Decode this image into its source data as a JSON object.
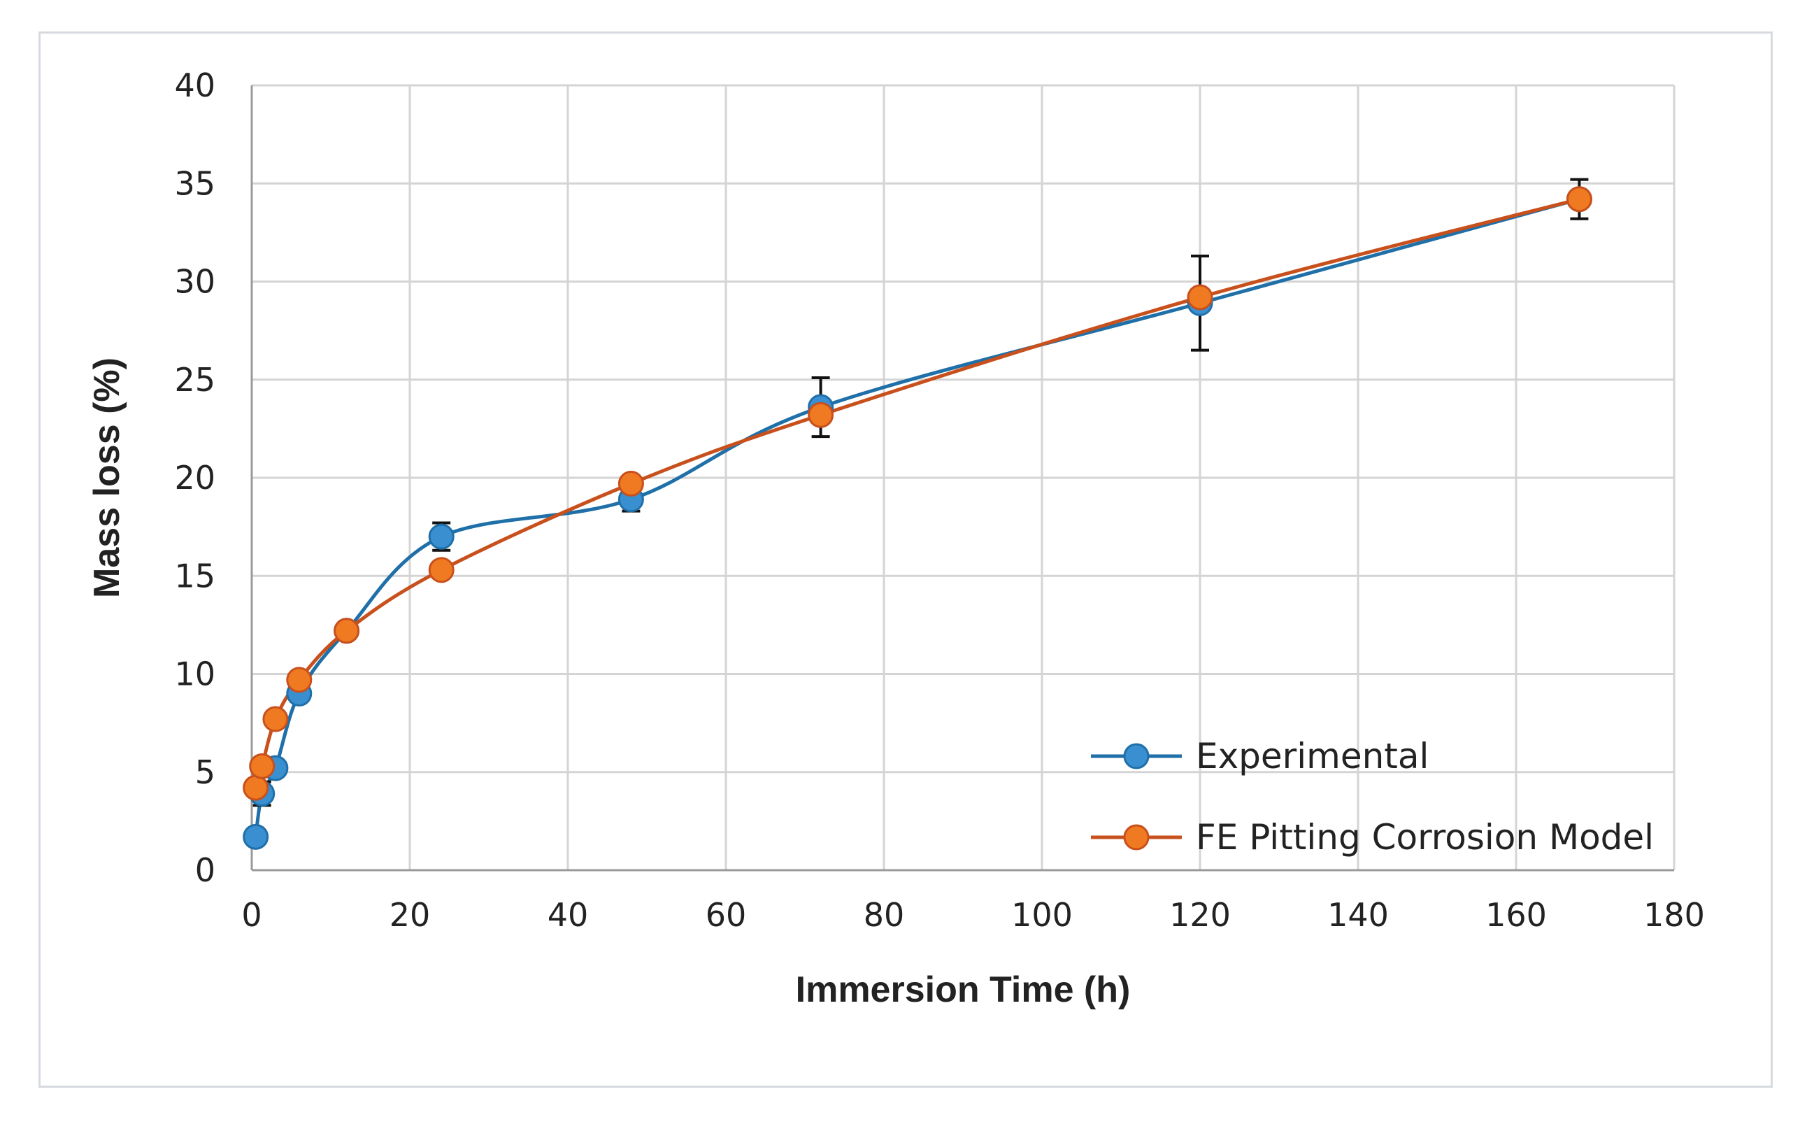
{
  "chart_data": {
    "type": "line",
    "xlabel": "Immersion Time (h)",
    "ylabel": "Mass loss (%)",
    "xlim": [
      0,
      180
    ],
    "ylim": [
      0,
      40
    ],
    "xticks": [
      0,
      20,
      40,
      60,
      80,
      100,
      120,
      140,
      160,
      180
    ],
    "yticks": [
      0,
      5,
      10,
      15,
      20,
      25,
      30,
      35,
      40
    ],
    "grid": true,
    "legend_position": "bottom-right",
    "smooth_lines": true,
    "series": [
      {
        "name": "Experimental",
        "color": "#1f6fa8",
        "marker_color": "#3a8fd0",
        "points": [
          {
            "x": 0.5,
            "y": 1.7
          },
          {
            "x": 1.3,
            "y": 3.9,
            "err": 0.6
          },
          {
            "x": 3,
            "y": 5.2,
            "err": 0.4
          },
          {
            "x": 6,
            "y": 9.0,
            "err": 0.4
          },
          {
            "x": 12,
            "y": 12.2,
            "err": 0.4
          },
          {
            "x": 24,
            "y": 17.0,
            "err": 0.7
          },
          {
            "x": 48,
            "y": 18.9,
            "err": 0.6
          },
          {
            "x": 72,
            "y": 23.6,
            "err": 1.5
          },
          {
            "x": 120,
            "y": 28.9,
            "err": 2.4
          },
          {
            "x": 168,
            "y": 34.2,
            "err": 1.0
          }
        ]
      },
      {
        "name": "FE Pitting Corrosion Model",
        "color": "#c8501c",
        "marker_color": "#f07a22",
        "points": [
          {
            "x": 0.5,
            "y": 4.2
          },
          {
            "x": 1.3,
            "y": 5.3
          },
          {
            "x": 3,
            "y": 7.7
          },
          {
            "x": 6,
            "y": 9.7
          },
          {
            "x": 12,
            "y": 12.2
          },
          {
            "x": 24,
            "y": 15.3
          },
          {
            "x": 48,
            "y": 19.7
          },
          {
            "x": 72,
            "y": 23.2
          },
          {
            "x": 120,
            "y": 29.2
          },
          {
            "x": 168,
            "y": 34.2
          }
        ]
      }
    ]
  }
}
